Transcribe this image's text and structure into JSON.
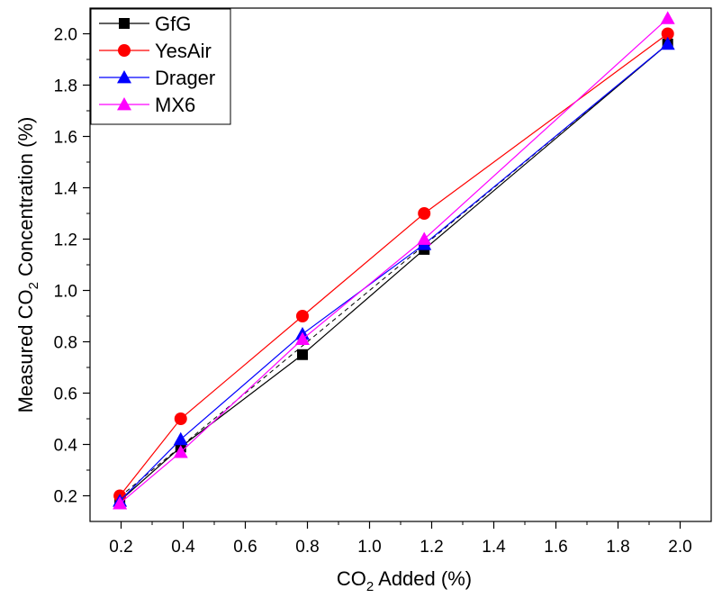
{
  "chart_data": {
    "type": "line",
    "xlabel": {
      "prefix": "CO",
      "sub": "2",
      "suffix": " Added (%)"
    },
    "ylabel": {
      "prefix": "Measured CO",
      "sub": "2",
      "suffix": " Concentration (%)"
    },
    "xlim": [
      0.1,
      2.1
    ],
    "ylim": [
      0.1,
      2.1
    ],
    "xticks": [
      "0.2",
      "0.4",
      "0.6",
      "0.8",
      "1.0",
      "1.2",
      "1.4",
      "1.6",
      "1.8",
      "2.0"
    ],
    "yticks": [
      "0.2",
      "0.4",
      "0.6",
      "0.8",
      "1.0",
      "1.2",
      "1.4",
      "1.6",
      "1.8",
      "2.0"
    ],
    "x": [
      0.196,
      0.392,
      0.784,
      1.176,
      1.96
    ],
    "reference_line": {
      "x": [
        0.196,
        1.96
      ],
      "y": [
        0.196,
        1.96
      ],
      "style": "dashed"
    },
    "series": [
      {
        "name": "GfG",
        "color": "#000000",
        "marker": "square",
        "values": [
          0.18,
          0.39,
          0.75,
          1.16,
          1.96
        ]
      },
      {
        "name": "YesAir",
        "color": "#ff0000",
        "marker": "circle",
        "values": [
          0.2,
          0.5,
          0.9,
          1.3,
          2.0
        ]
      },
      {
        "name": "Drager",
        "color": "#0000ff",
        "marker": "triangle",
        "values": [
          0.18,
          0.42,
          0.83,
          1.18,
          1.96
        ]
      },
      {
        "name": "MX6",
        "color": "#ff00ff",
        "marker": "triangle",
        "values": [
          0.17,
          0.37,
          0.81,
          1.2,
          2.06
        ]
      }
    ],
    "legend_position": "top-left",
    "grid": false
  }
}
